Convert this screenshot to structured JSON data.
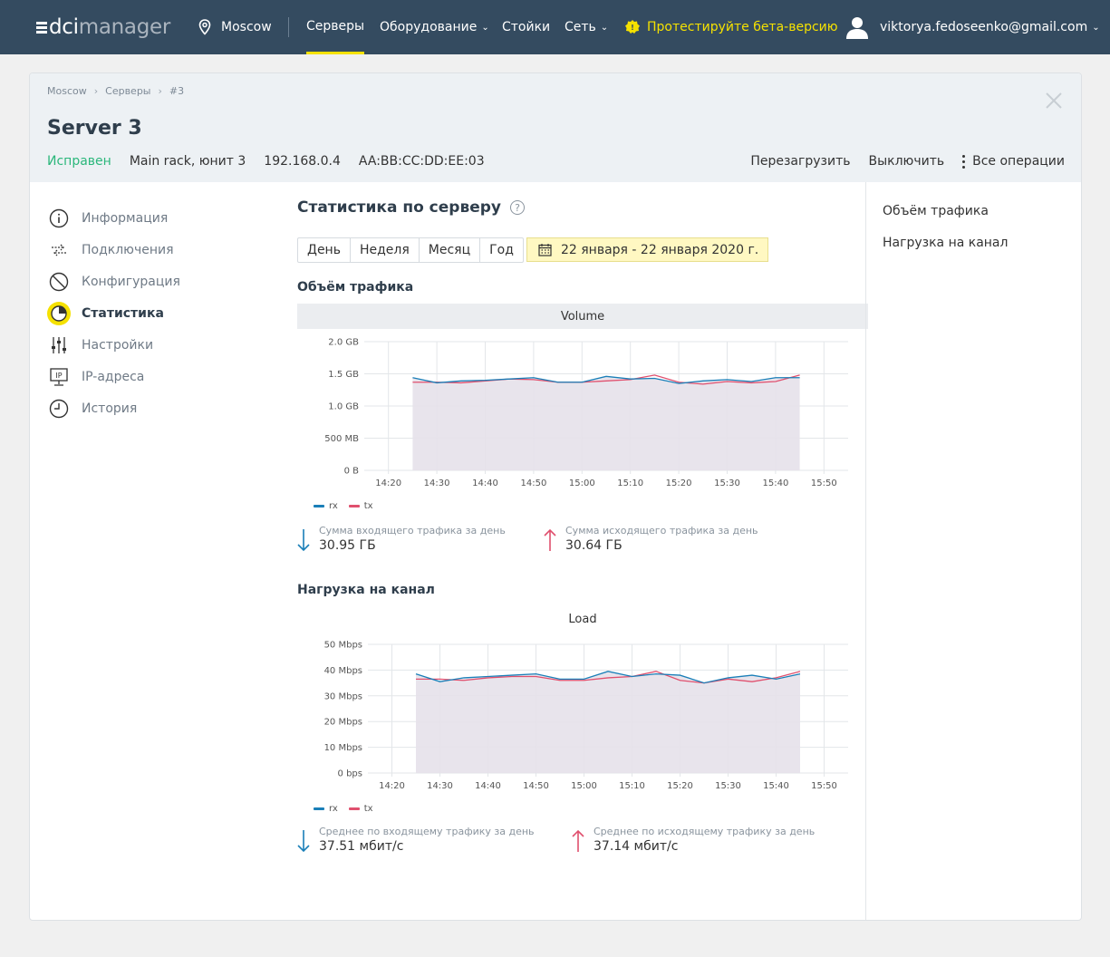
{
  "topbar": {
    "logo_dci": "dci",
    "logo_manager": "manager",
    "location": "Moscow",
    "nav": [
      "Серверы",
      "Оборудование",
      "Стойки",
      "Сеть"
    ],
    "beta": "Протестируйте бета-версию",
    "user": "viktorya.fedoseenko@gmail.com"
  },
  "breadcrumb": [
    "Moscow",
    "Серверы",
    "#3"
  ],
  "server": {
    "title": "Server 3",
    "status": "Исправен",
    "rack": "Main rack, юнит 3",
    "ip": "192.168.0.4",
    "mac": "AA:BB:CC:DD:EE:03"
  },
  "ops": {
    "reboot": "Перезагрузить",
    "shutdown": "Выключить",
    "all": "Все операции"
  },
  "sidemenu": [
    {
      "label": "Информация",
      "icon": "info-icon"
    },
    {
      "label": "Подключения",
      "icon": "connections-icon"
    },
    {
      "label": "Конфигурация",
      "icon": "config-icon"
    },
    {
      "label": "Статистика",
      "icon": "statistics-icon",
      "active": true
    },
    {
      "label": "Настройки",
      "icon": "settings-sliders-icon"
    },
    {
      "label": "IP-адреса",
      "icon": "ip-monitor-icon"
    },
    {
      "label": "История",
      "icon": "clock-icon"
    }
  ],
  "content": {
    "title": "Статистика по серверу",
    "help": "?",
    "periods": [
      "День",
      "Неделя",
      "Месяц",
      "Год"
    ],
    "daterange": "22 января - 22 января 2020 г.",
    "traffic_title": "Объём трафика",
    "load_title": "Нагрузка на канал"
  },
  "anchors": [
    "Объём трафика",
    "Нагрузка на канал"
  ],
  "colors": {
    "rx": "#1a7fb8",
    "tx": "#e0506e",
    "accent": "#f5e100",
    "ok": "#2bb77b",
    "area": "#e6e1ea"
  },
  "chart_data": [
    {
      "type": "line",
      "title": "Volume",
      "x": [
        "14:25",
        "14:30",
        "14:35",
        "14:40",
        "14:45",
        "14:50",
        "14:55",
        "15:00",
        "15:05",
        "15:10",
        "15:15",
        "15:20",
        "15:25",
        "15:30",
        "15:35",
        "15:40",
        "15:45"
      ],
      "xticks": [
        "14:20",
        "14:30",
        "14:40",
        "14:50",
        "15:00",
        "15:10",
        "15:20",
        "15:30",
        "15:40",
        "15:50"
      ],
      "yticks": [
        "0 B",
        "500 MB",
        "1.0 GB",
        "1.5 GB",
        "2.0 GB"
      ],
      "ylim": [
        0,
        2.0
      ],
      "yunit": "GB",
      "series": [
        {
          "name": "rx",
          "values": [
            1.44,
            1.36,
            1.39,
            1.4,
            1.42,
            1.44,
            1.37,
            1.37,
            1.46,
            1.42,
            1.43,
            1.35,
            1.39,
            1.41,
            1.38,
            1.44,
            1.44
          ]
        },
        {
          "name": "tx",
          "values": [
            1.37,
            1.37,
            1.36,
            1.39,
            1.42,
            1.41,
            1.37,
            1.37,
            1.39,
            1.41,
            1.48,
            1.37,
            1.34,
            1.38,
            1.36,
            1.38,
            1.48
          ]
        }
      ],
      "legend": "bottom-left",
      "summary": [
        {
          "label": "Сумма входящего трафика за день",
          "value": "30.95 ГБ",
          "direction": "down"
        },
        {
          "label": "Сумма исходящего трафика за день",
          "value": "30.64 ГБ",
          "direction": "up"
        }
      ]
    },
    {
      "type": "line",
      "title": "Load",
      "x": [
        "14:25",
        "14:30",
        "14:35",
        "14:40",
        "14:45",
        "14:50",
        "14:55",
        "15:00",
        "15:05",
        "15:10",
        "15:15",
        "15:20",
        "15:25",
        "15:30",
        "15:35",
        "15:40",
        "15:45"
      ],
      "xticks": [
        "14:20",
        "14:30",
        "14:40",
        "14:50",
        "15:00",
        "15:10",
        "15:20",
        "15:30",
        "15:40",
        "15:50"
      ],
      "yticks": [
        "0 bps",
        "10 Mbps",
        "20 Mbps",
        "30 Mbps",
        "40 Mbps",
        "50 Mbps"
      ],
      "ylim": [
        0,
        50
      ],
      "yunit": "Mbps",
      "series": [
        {
          "name": "rx",
          "values": [
            38.5,
            35.5,
            37.0,
            37.5,
            38.0,
            38.5,
            36.5,
            36.5,
            39.5,
            37.5,
            38.5,
            38.0,
            35.0,
            37.0,
            38.0,
            36.5,
            38.5
          ]
        },
        {
          "name": "tx",
          "values": [
            36.5,
            36.5,
            36.0,
            37.0,
            37.5,
            37.5,
            36.0,
            36.0,
            37.0,
            37.5,
            39.5,
            36.0,
            35.0,
            36.5,
            35.5,
            37.0,
            39.5
          ]
        }
      ],
      "legend": "bottom-left",
      "summary": [
        {
          "label": "Среднее по входящему трафику за день",
          "value": "37.51 мбит/с",
          "direction": "down"
        },
        {
          "label": "Среднее по исходящему трафику за день",
          "value": "37.14 мбит/с",
          "direction": "up"
        }
      ]
    }
  ]
}
